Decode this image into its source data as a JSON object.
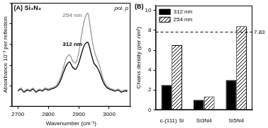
{
  "chart_data": [
    {
      "type": "line",
      "title": "(A) Si₃N₄",
      "annotations": [
        "pol. p"
      ],
      "x_label": "Wavenumber (cm⁻¹)",
      "y_label": "Absorbance 10⁻³ per reflection",
      "x": [
        2700,
        2710,
        2720,
        2730,
        2740,
        2750,
        2760,
        2770,
        2780,
        2790,
        2800,
        2810,
        2820,
        2830,
        2840,
        2850,
        2860,
        2870,
        2880,
        2890,
        2900,
        2910,
        2920,
        2930,
        2940,
        2950,
        2960,
        2970,
        2980,
        2990,
        3000,
        3010,
        3020,
        3030,
        3040,
        3050,
        3060
      ],
      "series": [
        {
          "name": "254 nm",
          "color": "#999999",
          "values": [
            0.16,
            0.18,
            0.15,
            0.17,
            0.16,
            0.18,
            0.15,
            0.17,
            0.16,
            0.18,
            0.17,
            0.18,
            0.19,
            0.22,
            0.28,
            0.38,
            0.47,
            0.5,
            0.44,
            0.42,
            0.52,
            0.7,
            0.85,
            0.9,
            0.72,
            0.55,
            0.46,
            0.38,
            0.27,
            0.21,
            0.18,
            0.17,
            0.16,
            0.17,
            0.15,
            0.16,
            0.16
          ]
        },
        {
          "name": "312 nm",
          "color": "#000000",
          "values": [
            0.15,
            0.17,
            0.14,
            0.16,
            0.15,
            0.17,
            0.14,
            0.16,
            0.15,
            0.17,
            0.16,
            0.17,
            0.18,
            0.2,
            0.25,
            0.33,
            0.4,
            0.43,
            0.38,
            0.36,
            0.42,
            0.52,
            0.6,
            0.62,
            0.52,
            0.42,
            0.38,
            0.32,
            0.24,
            0.19,
            0.17,
            0.16,
            0.15,
            0.16,
            0.14,
            0.15,
            0.15
          ]
        }
      ],
      "xlim": [
        2680,
        3070
      ],
      "xticks": [
        2700,
        2800,
        2900,
        3000
      ],
      "ylim": [
        0,
        1
      ],
      "yticks": [
        0,
        0.2,
        0.4,
        0.6,
        0.8,
        1
      ],
      "tick_labels": "x",
      "grid": false
    },
    {
      "type": "bar",
      "title": "(B)",
      "y_label": "Chains density (per nm²)",
      "categories": [
        "c-(111) Si",
        "Si3N4",
        "Si5N4"
      ],
      "series": [
        {
          "name": "312 nm",
          "color": "#000000",
          "marker": "solid",
          "values": [
            2.5,
            1.0,
            3.0
          ]
        },
        {
          "name": "254 nm",
          "color": "#000000",
          "marker": "hatch",
          "values": [
            6.5,
            1.35,
            8.4
          ]
        }
      ],
      "hline": 7.83,
      "ylim": [
        0,
        10.5
      ],
      "yticks": [
        0,
        2,
        4,
        6,
        8,
        10
      ],
      "legend": "upper left",
      "grid": false
    }
  ]
}
